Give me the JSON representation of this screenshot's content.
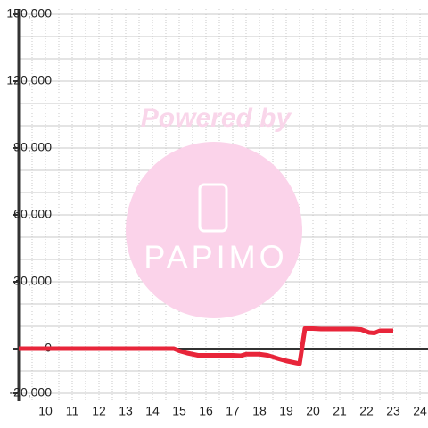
{
  "chart_data": {
    "type": "line",
    "watermark": [
      "Powered by",
      "PAPIMO"
    ],
    "x": [
      9,
      14.8,
      15,
      15.3,
      15.7,
      17,
      17.3,
      17.5,
      18,
      18.3,
      18.7,
      19,
      19.4,
      19.5,
      19.7,
      20,
      20.3,
      21.5,
      21.8,
      22.1,
      22.3,
      22.5,
      23
    ],
    "series": [
      {
        "color": "#e8253a",
        "values": [
          0,
          0,
          -1000,
          -2000,
          -3000,
          -3000,
          -3200,
          -2500,
          -2500,
          -3000,
          -4500,
          -5500,
          -6500,
          -6800,
          9000,
          9000,
          8800,
          8800,
          8600,
          7200,
          7000,
          8000,
          8000
        ]
      }
    ],
    "xlim": [
      9,
      24.3
    ],
    "ylim": [
      -23600,
      152400
    ],
    "xticks": [
      10,
      11,
      12,
      13,
      14,
      15,
      16,
      17,
      18,
      19,
      20,
      21,
      22,
      23,
      24
    ],
    "yticks": [
      {
        "value": 150000,
        "label": "150,000"
      },
      {
        "value": 120000,
        "label": "120,000"
      },
      {
        "value": 90000,
        "label": "90,000"
      },
      {
        "value": 60000,
        "label": "60,000"
      },
      {
        "value": 30000,
        "label": "30,000"
      },
      0,
      {
        "value": -20000,
        "label": "-20,000"
      }
    ],
    "y_gridlines": [
      -20000,
      -10000,
      10000,
      20000,
      30000,
      40000,
      50000,
      60000,
      70000,
      80000,
      90000,
      100000,
      110000,
      120000,
      130000,
      140000,
      150000
    ],
    "x_gridlines": [
      9.5,
      10,
      10.5,
      11,
      11.5,
      12,
      12.5,
      13,
      13.5,
      14,
      14.5,
      15,
      15.5,
      16,
      16.5,
      17,
      17.5,
      18,
      18.5,
      19,
      19.5,
      20,
      20.5,
      21,
      21.5,
      22,
      22.5,
      23,
      23.5,
      24
    ]
  }
}
